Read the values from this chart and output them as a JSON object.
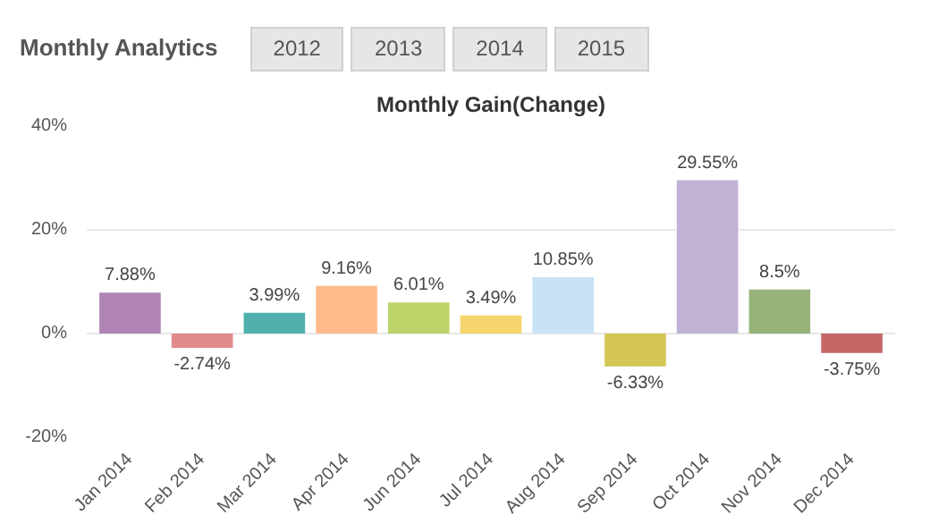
{
  "chart_data": {
    "type": "bar",
    "title": "Monthly Gain(Change)",
    "annotations": [
      "Monthly Analytics",
      "2012",
      "2013",
      "2014",
      "2015"
    ],
    "categories": [
      "Jan 2014",
      "Feb 2014",
      "Mar 2014",
      "Apr 2014",
      "Jun 2014",
      "Jul 2014",
      "Aug 2014",
      "Sep 2014",
      "Oct 2014",
      "Nov 2014",
      "Dec 2014"
    ],
    "values": [
      7.88,
      -2.74,
      3.99,
      9.16,
      6.01,
      3.49,
      10.85,
      -6.33,
      29.55,
      8.5,
      -3.75
    ],
    "colors": [
      "#b085b5",
      "#e08a8a",
      "#4fb0ae",
      "#fdbb8c",
      "#bcd46a",
      "#f6d56c",
      "#c8e3f6",
      "#d3c653",
      "#c0b2d4",
      "#97b37a",
      "#c56767"
    ],
    "value_labels": [
      "7.88%",
      "-2.74%",
      "3.99%",
      "9.16%",
      "6.01%",
      "3.49%",
      "10.85%",
      "-6.33%",
      "29.55%",
      "8.5%",
      "-3.75%"
    ],
    "ylim": [
      -20,
      40
    ],
    "yticks": [
      {
        "value": -20,
        "label": "-20%"
      },
      {
        "value": 0,
        "label": "0%"
      },
      {
        "value": 20,
        "label": "20%"
      },
      {
        "value": 40,
        "label": "40%"
      }
    ],
    "grid": "y"
  }
}
